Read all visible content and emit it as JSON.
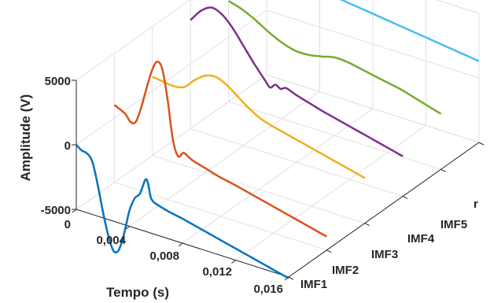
{
  "chart_data": {
    "type": "line",
    "title": "",
    "xlabel": "Tempo (s)",
    "ylabel": "",
    "zlabel": "Amplitude (V)",
    "xlim": [
      0,
      0.016
    ],
    "zlim": [
      -5000,
      5000
    ],
    "x_ticks": [
      "0",
      "0,004",
      "0,008",
      "0,012",
      "0,016"
    ],
    "y_ticks": [
      "IMF1",
      "IMF2",
      "IMF3",
      "IMF4",
      "IMF5",
      "r"
    ],
    "z_ticks": [
      "5000",
      "0",
      "-5000"
    ],
    "grid": true,
    "view": "3d",
    "series": [
      {
        "category": "IMF1",
        "color": "#0072BD",
        "x": [
          0,
          0.0004,
          0.0008,
          0.0012,
          0.0016,
          0.002,
          0.0024,
          0.0028,
          0.0032,
          0.0036,
          0.004,
          0.0044,
          0.0048,
          0.0052,
          0.0054,
          0.0056,
          0.0058,
          0.006,
          0.007,
          0.008,
          0.009,
          0.01,
          0.011,
          0.012,
          0.013,
          0.014,
          0.015,
          0.016
        ],
        "z": [
          0,
          -300,
          -400,
          -900,
          -2500,
          -4500,
          -6200,
          -7300,
          -7100,
          -5700,
          -3800,
          -2700,
          -2200,
          -1000,
          -1200,
          -2200,
          -2500,
          -2600,
          -2900,
          -3100,
          -3350,
          -3600,
          -3850,
          -4100,
          -4350,
          -4600,
          -4850,
          -5100
        ]
      },
      {
        "category": "IMF2",
        "color": "#D95319",
        "x": [
          0,
          0.0008,
          0.0012,
          0.0016,
          0.002,
          0.0024,
          0.0028,
          0.0032,
          0.0036,
          0.004,
          0.0044,
          0.0048,
          0.0052,
          0.0056,
          0.006,
          0.007,
          0.008,
          0.009,
          0.01,
          0.011,
          0.012,
          0.013,
          0.014,
          0.015,
          0.016
        ],
        "z": [
          1000,
          600,
          100,
          200,
          1400,
          3000,
          4500,
          5400,
          5000,
          2800,
          -200,
          -1400,
          -1000,
          -1200,
          -1400,
          -1700,
          -2000,
          -2200,
          -2450,
          -2700,
          -2950,
          -3200,
          -3450,
          -3700,
          -3950
        ]
      },
      {
        "category": "IMF3",
        "color": "#EDB120",
        "x": [
          0,
          0.0008,
          0.0016,
          0.0024,
          0.0032,
          0.004,
          0.0048,
          0.0056,
          0.0064,
          0.0072,
          0.008,
          0.0088,
          0.0096,
          0.0104,
          0.0112,
          0.012,
          0.0128,
          0.0136,
          0.0144,
          0.0152,
          0.016
        ],
        "z": [
          1100,
          1000,
          900,
          1100,
          1900,
          2500,
          2650,
          2300,
          1700,
          1100,
          600,
          300,
          100,
          -100,
          -300,
          -500,
          -700,
          -900,
          -1100,
          -1300,
          -1500
        ]
      },
      {
        "category": "IMF4",
        "color": "#7E2F8E",
        "x": [
          0,
          0.0008,
          0.0016,
          0.0024,
          0.0032,
          0.004,
          0.0048,
          0.0056,
          0.006,
          0.0064,
          0.0068,
          0.0072,
          0.008,
          0.009,
          0.01,
          0.011,
          0.012,
          0.013,
          0.014,
          0.015,
          0.016
        ],
        "z": [
          3400,
          4400,
          4900,
          4600,
          3800,
          2700,
          1600,
          600,
          150,
          500,
          300,
          500,
          200,
          -100,
          -400,
          -650,
          -900,
          -1150,
          -1400,
          -1650,
          -1900
        ]
      },
      {
        "category": "IMF5",
        "color": "#77AC30",
        "x": [
          0,
          0.001,
          0.002,
          0.003,
          0.004,
          0.005,
          0.006,
          0.007,
          0.008,
          0.009,
          0.01,
          0.011,
          0.012,
          0.013,
          0.014,
          0.015,
          0.016
        ],
        "z": [
          2800,
          2500,
          2000,
          1400,
          900,
          600,
          600,
          800,
          1050,
          1000,
          800,
          600,
          400,
          200,
          -100,
          -400,
          -700
        ]
      },
      {
        "category": "r",
        "color": "#4DBEEE",
        "x": [
          0,
          0.016
        ],
        "z": [
          3400,
          1300
        ]
      }
    ]
  }
}
